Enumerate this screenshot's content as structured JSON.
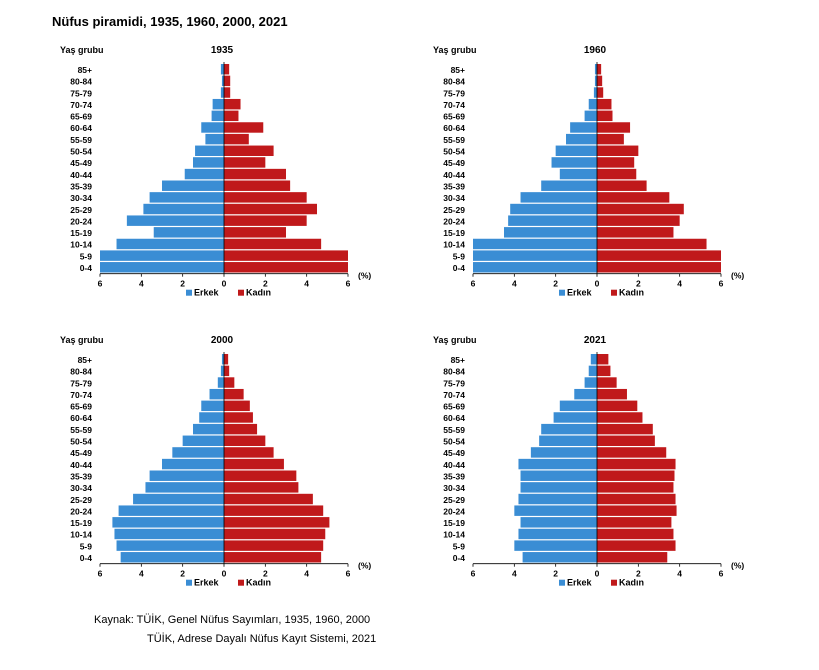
{
  "title": "Nüfus piramidi, 1935, 1960, 2000, 2021",
  "colors": {
    "male": "#3a8dd4",
    "female": "#c0191b"
  },
  "chart_data": [
    {
      "type": "bar",
      "orientation": "horizontal",
      "title": "1935",
      "ylabel": "Yaş grubu",
      "xlabel": "(%)",
      "xlim": [
        -6,
        6
      ],
      "xticks": [
        6,
        4,
        2,
        0,
        2,
        4,
        6
      ],
      "categories": [
        "85+",
        "80-84",
        "75-79",
        "70-74",
        "65-69",
        "60-64",
        "55-59",
        "50-54",
        "45-49",
        "40-44",
        "35-39",
        "30-34",
        "25-29",
        "20-24",
        "15-19",
        "10-14",
        "5-9",
        "0-4"
      ],
      "series": [
        {
          "name": "Erkek",
          "values": [
            0.15,
            0.1,
            0.15,
            0.55,
            0.6,
            1.1,
            0.9,
            1.4,
            1.5,
            1.9,
            3.0,
            3.6,
            3.9,
            4.7,
            3.4,
            5.2,
            6.0,
            6.0
          ]
        },
        {
          "name": "Kadın",
          "values": [
            0.25,
            0.3,
            0.3,
            0.8,
            0.7,
            1.9,
            1.2,
            2.4,
            2.0,
            3.0,
            3.2,
            4.0,
            4.5,
            4.0,
            3.0,
            4.7,
            6.0,
            6.0
          ]
        }
      ],
      "legend": "bottom"
    },
    {
      "type": "bar",
      "orientation": "horizontal",
      "title": "1960",
      "ylabel": "Yaş grubu",
      "xlabel": "(%)",
      "xlim": [
        -6,
        6
      ],
      "xticks": [
        6,
        4,
        2,
        0,
        2,
        4,
        6
      ],
      "categories": [
        "85+",
        "80-84",
        "75-79",
        "70-74",
        "65-69",
        "60-64",
        "55-59",
        "50-54",
        "45-49",
        "40-44",
        "35-39",
        "30-34",
        "25-29",
        "20-24",
        "15-19",
        "10-14",
        "5-9",
        "0-4"
      ],
      "series": [
        {
          "name": "Erkek",
          "values": [
            0.1,
            0.1,
            0.15,
            0.4,
            0.6,
            1.3,
            1.5,
            2.0,
            2.2,
            1.8,
            2.7,
            3.7,
            4.2,
            4.3,
            4.5,
            6.0,
            6.0,
            6.0
          ]
        },
        {
          "name": "Kadın",
          "values": [
            0.2,
            0.25,
            0.3,
            0.7,
            0.75,
            1.6,
            1.3,
            2.0,
            1.8,
            1.9,
            2.4,
            3.5,
            4.2,
            4.0,
            3.7,
            5.3,
            6.0,
            6.0
          ]
        }
      ],
      "legend": "bottom"
    },
    {
      "type": "bar",
      "orientation": "horizontal",
      "title": "2000",
      "ylabel": "Yaş grubu",
      "xlabel": "(%)",
      "xlim": [
        -6,
        6
      ],
      "xticks": [
        6,
        4,
        2,
        0,
        2,
        4,
        6
      ],
      "categories": [
        "85+",
        "80-84",
        "75-79",
        "70-74",
        "65-69",
        "60-64",
        "55-59",
        "50-54",
        "45-49",
        "40-44",
        "35-39",
        "30-34",
        "25-29",
        "20-24",
        "15-19",
        "10-14",
        "5-9",
        "0-4"
      ],
      "series": [
        {
          "name": "Erkek",
          "values": [
            0.1,
            0.15,
            0.3,
            0.7,
            1.1,
            1.2,
            1.5,
            2.0,
            2.5,
            3.0,
            3.6,
            3.8,
            4.4,
            5.1,
            5.4,
            5.3,
            5.2,
            5.0
          ]
        },
        {
          "name": "Kadın",
          "values": [
            0.2,
            0.25,
            0.5,
            0.95,
            1.25,
            1.4,
            1.6,
            2.0,
            2.4,
            2.9,
            3.5,
            3.6,
            4.3,
            4.8,
            5.1,
            4.9,
            4.8,
            4.7
          ]
        }
      ],
      "legend": "bottom"
    },
    {
      "type": "bar",
      "orientation": "horizontal",
      "title": "2021",
      "ylabel": "Yaş grubu",
      "xlabel": "(%)",
      "xlim": [
        -6,
        6
      ],
      "xticks": [
        6,
        4,
        2,
        0,
        2,
        4,
        6
      ],
      "categories": [
        "85+",
        "80-84",
        "75-79",
        "70-74",
        "65-69",
        "60-64",
        "55-59",
        "50-54",
        "45-49",
        "40-44",
        "35-39",
        "30-34",
        "25-29",
        "20-24",
        "15-19",
        "10-14",
        "5-9",
        "0-4"
      ],
      "series": [
        {
          "name": "Erkek",
          "values": [
            0.3,
            0.4,
            0.6,
            1.1,
            1.8,
            2.1,
            2.7,
            2.8,
            3.2,
            3.8,
            3.7,
            3.7,
            3.8,
            4.0,
            3.7,
            3.8,
            4.0,
            3.6
          ]
        },
        {
          "name": "Kadın",
          "values": [
            0.55,
            0.65,
            0.95,
            1.45,
            1.95,
            2.2,
            2.7,
            2.8,
            3.35,
            3.8,
            3.75,
            3.7,
            3.8,
            3.85,
            3.6,
            3.7,
            3.8,
            3.4
          ]
        }
      ],
      "legend": "bottom"
    }
  ],
  "source": {
    "line1": "Kaynak: TÜİK, Genel Nüfus Sayımları, 1935, 1960, 2000",
    "line2": "TÜİK, Adrese Dayalı Nüfus Kayıt Sistemi, 2021"
  }
}
